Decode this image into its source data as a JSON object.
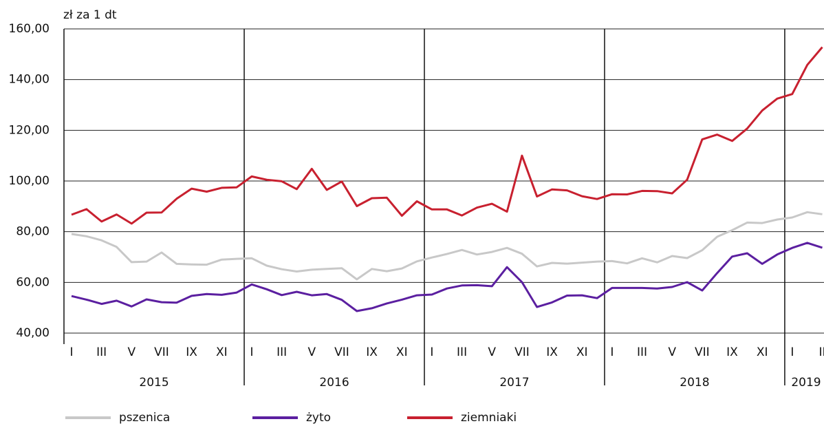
{
  "chart_data": {
    "type": "line",
    "y_unit_label": "zł za 1 dt",
    "categories": [
      "I",
      null,
      "III",
      null,
      "V",
      null,
      "VII",
      null,
      "IX",
      null,
      "XI",
      null,
      "I",
      null,
      "III",
      null,
      "V",
      null,
      "VII",
      null,
      "IX",
      null,
      "XI",
      null,
      "I",
      null,
      "III",
      null,
      "V",
      null,
      "VII",
      null,
      "IX",
      null,
      "XI",
      null,
      "I",
      null,
      "III",
      null,
      "V",
      null,
      "VII",
      null,
      "IX",
      null,
      "XI",
      null,
      "I",
      null,
      "II"
    ],
    "year_labels": [
      "2015",
      "2016",
      "2017",
      "2018",
      "2019"
    ],
    "series": [
      {
        "name": "pszenica",
        "color": "#c8c8c8",
        "values": [
          79.1,
          78.2,
          76.6,
          74.0,
          68.0,
          68.2,
          71.8,
          67.3,
          67.1,
          67.0,
          69.0,
          69.3,
          69.5,
          66.6,
          65.2,
          64.3,
          65.0,
          65.3,
          65.6,
          61.2,
          65.3,
          64.4,
          65.5,
          68.3,
          69.8,
          71.2,
          72.8,
          71.0,
          72.0,
          73.6,
          71.3,
          66.3,
          67.7,
          67.4,
          67.8,
          68.2,
          68.4,
          67.5,
          69.5,
          67.9,
          70.4,
          69.6,
          72.7,
          78.0,
          80.6,
          83.6,
          83.4,
          84.8,
          85.6,
          87.7,
          86.9
        ]
      },
      {
        "name": "żyto",
        "color": "#5b1fa0",
        "values": [
          54.6,
          53.2,
          51.5,
          52.8,
          50.5,
          53.3,
          52.2,
          52.0,
          54.7,
          55.4,
          55.1,
          56.0,
          59.2,
          57.3,
          55.0,
          56.3,
          54.9,
          55.4,
          53.1,
          48.7,
          49.8,
          51.7,
          53.2,
          54.9,
          55.2,
          57.6,
          58.8,
          58.9,
          58.5,
          66.0,
          60.1,
          50.3,
          52.1,
          54.8,
          54.9,
          53.8,
          57.8,
          57.8,
          57.8,
          57.6,
          58.2,
          60.1,
          56.8,
          63.7,
          70.2,
          71.5,
          67.3,
          71.0,
          73.6,
          75.6,
          73.7
        ]
      },
      {
        "name": "ziemniaki",
        "color": "#c8202f",
        "values": [
          86.7,
          88.9,
          84.0,
          86.8,
          83.2,
          87.5,
          87.6,
          93.0,
          97.0,
          95.8,
          97.3,
          97.5,
          101.8,
          100.5,
          99.9,
          96.8,
          104.8,
          96.5,
          99.8,
          90.1,
          93.2,
          93.4,
          86.3,
          92.0,
          88.8,
          88.8,
          86.4,
          89.5,
          91.0,
          87.9,
          110.0,
          93.9,
          96.7,
          96.3,
          94.0,
          92.9,
          94.8,
          94.7,
          96.1,
          96.0,
          95.1,
          100.5,
          116.4,
          118.3,
          115.8,
          120.7,
          127.8,
          132.5,
          134.3,
          145.8,
          152.8
        ]
      }
    ],
    "ylim": [
      40,
      160
    ],
    "yticks": [
      {
        "value": 40,
        "label": "40,00"
      },
      {
        "value": 60,
        "label": "60,00"
      },
      {
        "value": 80,
        "label": "80,00"
      },
      {
        "value": 100,
        "label": "100,00"
      },
      {
        "value": 120,
        "label": "120,00"
      },
      {
        "value": 140,
        "label": "140,00"
      },
      {
        "value": 160,
        "label": "160,00"
      }
    ],
    "grid": true
  }
}
